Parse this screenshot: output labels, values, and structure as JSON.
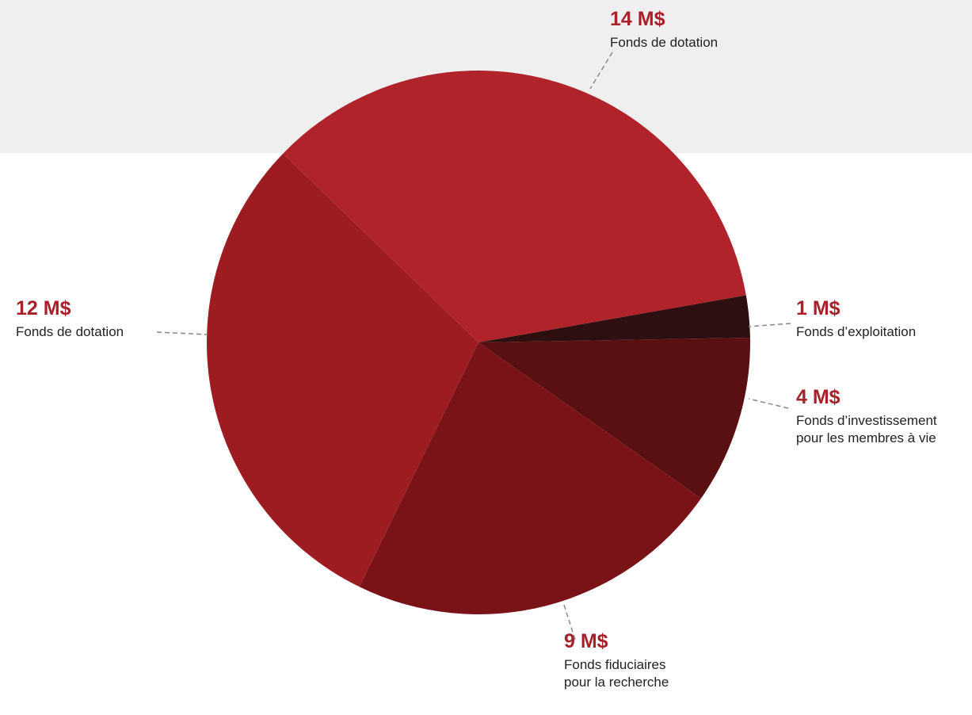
{
  "chart_data": {
    "type": "pie",
    "categories": [
      "Fonds de dotation",
      "Fonds d’exploitation",
      "Fonds d’investissement\npour les membres à vie",
      "Fonds fiduciaires\npour la recherche",
      "Fonds de dotation"
    ],
    "values": [
      14,
      1,
      4,
      9,
      12
    ],
    "value_labels": [
      "14 M$",
      "1 M$",
      "4 M$",
      "9 M$",
      "12 M$"
    ],
    "colors": [
      "#b0232a",
      "#2e0f10",
      "#5a1012",
      "#7a1317",
      "#9c1c21"
    ]
  }
}
